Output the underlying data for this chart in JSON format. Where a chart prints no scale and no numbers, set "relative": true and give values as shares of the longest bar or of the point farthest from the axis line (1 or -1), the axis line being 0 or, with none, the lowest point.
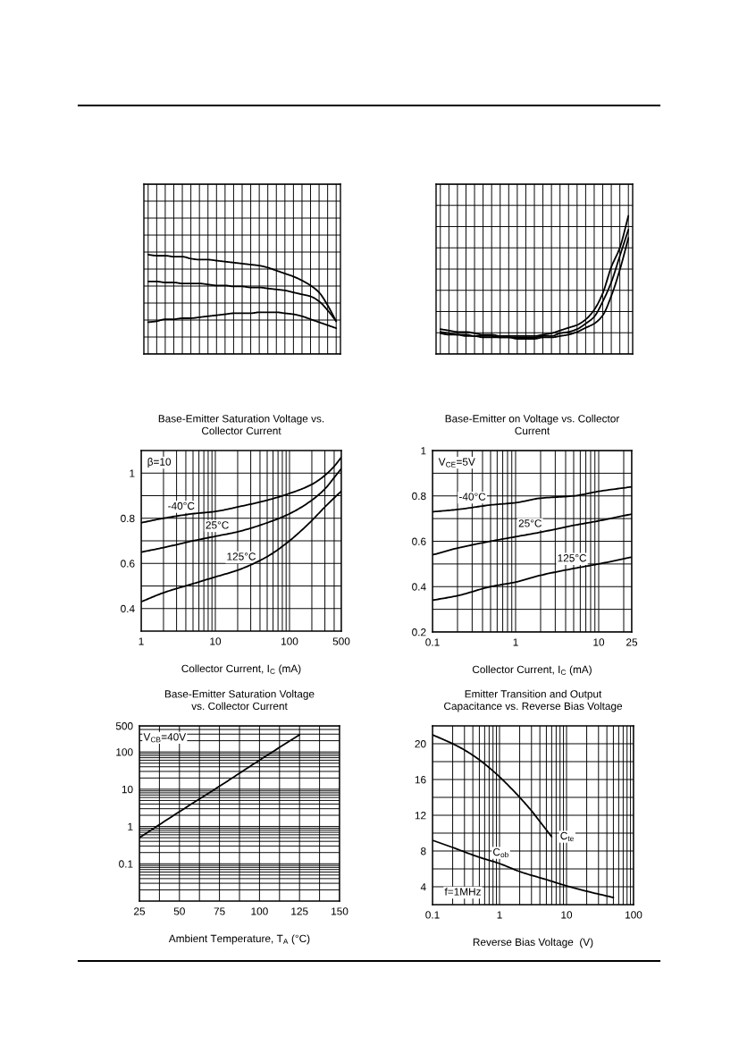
{
  "chart_data": [
    {
      "type": "line",
      "relative": true,
      "grid": true,
      "categories": [
        null,
        null,
        null,
        null,
        null,
        null,
        null,
        null,
        null,
        null,
        null,
        null,
        null,
        null,
        null,
        null,
        null,
        null,
        null,
        null,
        null,
        null,
        null
      ],
      "series": [
        {
          "color": "#000000",
          "values": [
            1,
            0.99,
            0.99,
            0.98,
            0.98,
            0.96,
            0.95,
            0.95,
            0.94,
            0.93,
            0.92,
            0.91,
            0.9,
            0.89,
            0.87,
            0.84,
            0.81,
            0.78,
            0.74,
            0.69,
            0.62,
            0.49,
            0.33
          ]
        },
        {
          "color": "#000000",
          "values": [
            0.73,
            0.73,
            0.72,
            0.72,
            0.71,
            0.71,
            0.71,
            0.7,
            0.69,
            0.69,
            0.68,
            0.68,
            0.67,
            0.67,
            0.66,
            0.65,
            0.64,
            0.62,
            0.6,
            0.58,
            0.53,
            0.44,
            0.33
          ]
        },
        {
          "color": "#000000",
          "values": [
            0.32,
            0.33,
            0.35,
            0.35,
            0.36,
            0.36,
            0.37,
            0.38,
            0.39,
            0.4,
            0.41,
            0.41,
            0.41,
            0.42,
            0.42,
            0.42,
            0.41,
            0.4,
            0.38,
            0.35,
            0.32,
            0.29,
            0.26
          ]
        }
      ]
    },
    {
      "type": "line",
      "relative": true,
      "grid": true,
      "categories": [
        null,
        null,
        null,
        null,
        null,
        null,
        null,
        null,
        null,
        null,
        null,
        null,
        null,
        null,
        null,
        null,
        null,
        null,
        null,
        null,
        null,
        null,
        null
      ],
      "series": [
        {
          "color": "#000000",
          "values": [
            0.18,
            0.17,
            0.16,
            0.16,
            0.15,
            0.14,
            0.14,
            0.13,
            0.13,
            0.13,
            0.13,
            0.13,
            0.14,
            0.15,
            0.17,
            0.19,
            0.21,
            0.25,
            0.32,
            0.44,
            0.63,
            0.77,
            1
          ]
        },
        {
          "color": "#000000",
          "values": [
            0.16,
            0.15,
            0.14,
            0.14,
            0.13,
            0.13,
            0.13,
            0.12,
            0.12,
            0.12,
            0.12,
            0.12,
            0.13,
            0.13,
            0.15,
            0.16,
            0.18,
            0.22,
            0.27,
            0.38,
            0.52,
            0.71,
            0.9
          ]
        },
        {
          "color": "#000000",
          "values": [
            0.15,
            0.14,
            0.14,
            0.13,
            0.13,
            0.12,
            0.12,
            0.12,
            0.12,
            0.11,
            0.11,
            0.11,
            0.12,
            0.12,
            0.13,
            0.14,
            0.16,
            0.19,
            0.22,
            0.28,
            0.42,
            0.61,
            0.84
          ]
        }
      ]
    },
    {
      "type": "line",
      "title": "Base-Emitter Saturation Voltage vs.\nCollector Current",
      "xlabel": "Collector Current, I$_{C}$ (mA)",
      "log": "x",
      "grid": true,
      "annotations": [
        "β=10"
      ],
      "x": [
        1,
        2,
        5,
        10,
        20,
        50,
        100,
        200,
        300,
        400,
        500
      ],
      "xlim": [
        1,
        500
      ],
      "xticks": [
        1,
        {
          "value": 2,
          "label": null
        },
        {
          "value": 3,
          "label": null
        },
        {
          "value": 4,
          "label": null
        },
        {
          "value": 5,
          "label": null
        },
        {
          "value": 6,
          "label": null
        },
        {
          "value": 7,
          "label": null
        },
        {
          "value": 8,
          "label": null
        },
        {
          "value": 9,
          "label": null
        },
        10,
        {
          "value": 20,
          "label": null
        },
        {
          "value": 30,
          "label": null
        },
        {
          "value": 40,
          "label": null
        },
        {
          "value": 50,
          "label": null
        },
        {
          "value": 60,
          "label": null
        },
        {
          "value": 70,
          "label": null
        },
        {
          "value": 80,
          "label": null
        },
        {
          "value": 90,
          "label": null
        },
        100,
        {
          "value": 200,
          "label": null
        },
        {
          "value": 300,
          "label": null
        },
        {
          "value": 400,
          "label": null
        },
        500
      ],
      "ylim": [
        0.3,
        1.1
      ],
      "yticks": [
        0.4,
        {
          "value": 0.5,
          "label": null
        },
        0.6,
        {
          "value": 0.7,
          "label": null
        },
        0.8,
        {
          "value": 0.9,
          "label": null
        },
        1
      ],
      "series": [
        {
          "name": "-40°C",
          "color": "#000000",
          "values": [
            0.78,
            0.8,
            0.82,
            0.83,
            0.85,
            0.88,
            0.91,
            0.95,
            0.99,
            1.03,
            1.07
          ]
        },
        {
          "name": "25°C",
          "color": "#000000",
          "values": [
            0.65,
            0.67,
            0.7,
            0.72,
            0.74,
            0.78,
            0.82,
            0.88,
            0.93,
            0.98,
            1.02
          ]
        },
        {
          "name": "125°C",
          "color": "#000000",
          "values": [
            0.43,
            0.47,
            0.51,
            0.54,
            0.57,
            0.63,
            0.7,
            0.79,
            0.85,
            0.89,
            0.92
          ]
        }
      ]
    },
    {
      "type": "line",
      "title": "Base-Emitter on Voltage vs. Collector\nCurrent",
      "xlabel": "Collector Current, I$_{C}$ (mA)",
      "log": "x",
      "grid": true,
      "annotations": [
        "V$_{CE}$=5V"
      ],
      "x": [
        0.1,
        0.2,
        0.5,
        1,
        2,
        5,
        10,
        25
      ],
      "xlim": [
        0.1,
        25
      ],
      "xticks": [
        0.1,
        {
          "value": 0.2,
          "label": null
        },
        {
          "value": 0.3,
          "label": null
        },
        {
          "value": 0.4,
          "label": null
        },
        {
          "value": 0.5,
          "label": null
        },
        {
          "value": 0.6,
          "label": null
        },
        {
          "value": 0.7,
          "label": null
        },
        {
          "value": 0.8,
          "label": null
        },
        {
          "value": 0.9,
          "label": null
        },
        1,
        {
          "value": 2,
          "label": null
        },
        {
          "value": 3,
          "label": null
        },
        {
          "value": 4,
          "label": null
        },
        {
          "value": 5,
          "label": null
        },
        {
          "value": 6,
          "label": null
        },
        {
          "value": 7,
          "label": null
        },
        {
          "value": 8,
          "label": null
        },
        {
          "value": 9,
          "label": null
        },
        10,
        {
          "value": 20,
          "label": null
        },
        25
      ],
      "ylim": [
        0.2,
        1
      ],
      "yticks": [
        0.2,
        {
          "value": 0.3,
          "label": null
        },
        0.4,
        {
          "value": 0.5,
          "label": null
        },
        0.6,
        {
          "value": 0.7,
          "label": null
        },
        0.8,
        {
          "value": 0.9,
          "label": null
        },
        1
      ],
      "series": [
        {
          "name": "-40°C",
          "color": "#000000",
          "values": [
            0.73,
            0.74,
            0.76,
            0.77,
            0.79,
            0.8,
            0.82,
            0.84
          ]
        },
        {
          "name": "25°C",
          "color": "#000000",
          "values": [
            0.54,
            0.57,
            0.6,
            0.62,
            0.64,
            0.67,
            0.69,
            0.72
          ]
        },
        {
          "name": "125°C",
          "color": "#000000",
          "values": [
            0.34,
            0.36,
            0.4,
            0.42,
            0.45,
            0.48,
            0.5,
            0.53
          ]
        }
      ]
    },
    {
      "type": "line",
      "title": "Base-Emitter Saturation Voltage\nvs. Collector Current",
      "xlabel": "Ambient Temperature, T$_{A}$ (°C)",
      "log": "y",
      "grid": true,
      "annotations": [
        "V$_{CB}$=40V"
      ],
      "x": [
        25,
        50,
        75,
        100,
        125
      ],
      "xlim": [
        25,
        150
      ],
      "xticks": [
        25,
        {
          "value": 37.5,
          "label": null
        },
        50,
        {
          "value": 62.5,
          "label": null
        },
        75,
        {
          "value": 87.5,
          "label": null
        },
        100,
        {
          "value": 112.5,
          "label": null
        },
        125,
        {
          "value": 137.5,
          "label": null
        },
        150
      ],
      "ylim": [
        0.01,
        500
      ],
      "yticks": [
        {
          "value": 0.02,
          "label": null
        },
        {
          "value": 0.03,
          "label": null
        },
        {
          "value": 0.04,
          "label": null
        },
        {
          "value": 0.05,
          "label": null
        },
        {
          "value": 0.06,
          "label": null
        },
        {
          "value": 0.07,
          "label": null
        },
        {
          "value": 0.08,
          "label": null
        },
        {
          "value": 0.09,
          "label": null
        },
        0.1,
        {
          "value": 0.2,
          "label": null
        },
        {
          "value": 0.3,
          "label": null
        },
        {
          "value": 0.4,
          "label": null
        },
        {
          "value": 0.5,
          "label": null
        },
        {
          "value": 0.6,
          "label": null
        },
        {
          "value": 0.7,
          "label": null
        },
        {
          "value": 0.8,
          "label": null
        },
        {
          "value": 0.9,
          "label": null
        },
        1,
        {
          "value": 2,
          "label": null
        },
        {
          "value": 3,
          "label": null
        },
        {
          "value": 4,
          "label": null
        },
        {
          "value": 5,
          "label": null
        },
        {
          "value": 6,
          "label": null
        },
        {
          "value": 7,
          "label": null
        },
        {
          "value": 8,
          "label": null
        },
        {
          "value": 9,
          "label": null
        },
        10,
        {
          "value": 20,
          "label": null
        },
        {
          "value": 30,
          "label": null
        },
        {
          "value": 40,
          "label": null
        },
        {
          "value": 50,
          "label": null
        },
        {
          "value": 60,
          "label": null
        },
        {
          "value": 70,
          "label": null
        },
        {
          "value": 80,
          "label": null
        },
        {
          "value": 90,
          "label": null
        },
        100,
        {
          "value": 200,
          "label": null
        },
        {
          "value": 300,
          "label": null
        },
        {
          "value": 400,
          "label": null
        },
        500
      ],
      "series": [
        {
          "color": "#000000",
          "values": [
            0.5,
            2.5,
            12,
            60,
            290
          ]
        }
      ]
    },
    {
      "type": "line",
      "title": "Emitter Transition and Output\nCapacitance vs. Reverse Bias Voltage",
      "xlabel": "Reverse Bias Voltage  (V)",
      "log": "x",
      "grid": true,
      "annotations": [
        "f=1MHz"
      ],
      "xlim": [
        0.1,
        100
      ],
      "xticks": [
        0.1,
        {
          "value": 0.2,
          "label": null
        },
        {
          "value": 0.3,
          "label": null
        },
        {
          "value": 0.4,
          "label": null
        },
        {
          "value": 0.5,
          "label": null
        },
        {
          "value": 0.6,
          "label": null
        },
        {
          "value": 0.7,
          "label": null
        },
        {
          "value": 0.8,
          "label": null
        },
        {
          "value": 0.9,
          "label": null
        },
        1,
        {
          "value": 2,
          "label": null
        },
        {
          "value": 3,
          "label": null
        },
        {
          "value": 4,
          "label": null
        },
        {
          "value": 5,
          "label": null
        },
        {
          "value": 6,
          "label": null
        },
        {
          "value": 7,
          "label": null
        },
        {
          "value": 8,
          "label": null
        },
        {
          "value": 9,
          "label": null
        },
        10,
        {
          "value": 20,
          "label": null
        },
        {
          "value": 30,
          "label": null
        },
        {
          "value": 40,
          "label": null
        },
        {
          "value": 50,
          "label": null
        },
        {
          "value": 60,
          "label": null
        },
        {
          "value": 70,
          "label": null
        },
        {
          "value": 80,
          "label": null
        },
        {
          "value": 90,
          "label": null
        },
        100
      ],
      "ylim": [
        2,
        22
      ],
      "yticks": [
        4,
        {
          "value": 6,
          "label": null
        },
        8,
        {
          "value": 10,
          "label": null
        },
        12,
        {
          "value": 14,
          "label": null
        },
        16,
        {
          "value": 18,
          "label": null
        },
        20
      ],
      "series": [
        {
          "name": "C$_{te}$",
          "color": "#000000",
          "x": [
            0.1,
            0.2,
            0.3,
            0.5,
            1,
            2,
            3,
            4,
            6
          ],
          "values": [
            21,
            20,
            19.3,
            18.2,
            16.3,
            14,
            12.5,
            11.3,
            9.6
          ]
        },
        {
          "name": "C$_{ob}$",
          "color": "#000000",
          "x": [
            0.1,
            0.2,
            0.5,
            1,
            2,
            5,
            10,
            20,
            50
          ],
          "values": [
            9.2,
            8.4,
            7.3,
            6.6,
            5.7,
            4.8,
            4.1,
            3.5,
            2.8
          ]
        }
      ]
    }
  ]
}
